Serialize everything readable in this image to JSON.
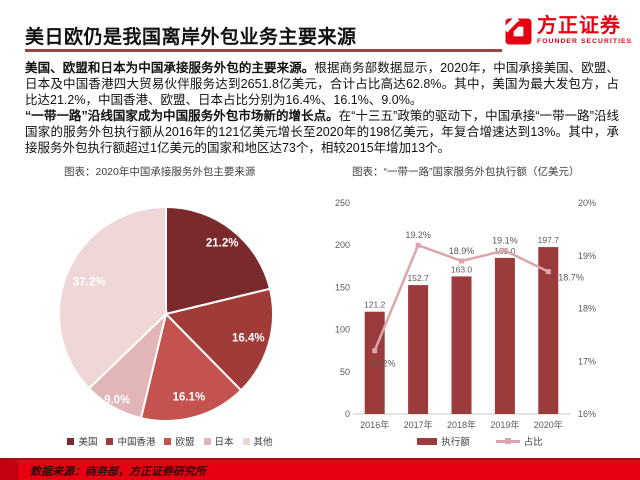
{
  "header": {
    "title": "美日欧仍是我国离岸外包业务主要来源",
    "logo_cn": "方正证券",
    "logo_en": "FOUNDER SECURITIES"
  },
  "body": {
    "para1_bold": "美国、欧盟和日本为中国承接服务外包的主要来源。",
    "para1_rest": "根据商务部数据显示，2020年，中国承接美国、欧盟、日本及中国香港四大贸易伙伴服务达到2651.8亿美元，合计占比高达62.8%。其中，美国为最大发包方，占比达21.2%，中国香港、欧盟、日本占比分别为16.4%、16.1%、9.0%。",
    "para2_bold": "“一带一路”沿线国家成为中国服务外包市场新的增长点。",
    "para2_rest": "在“十三五”政策的驱动下，中国承接“一带一路”沿线国家的服务外包执行额从2016年的121亿美元增长至2020年的198亿美元，年复合增速达到13%。其中，承接服务外包执行额超过1亿美元的国家和地区达73个，相较2015年增加13个。"
  },
  "footer": {
    "source": "数据来源：商务部，方正证券研究所"
  },
  "colors": {
    "brand_red": "#E60012",
    "title_rule": "#9E4444",
    "footer_bar": "#E60012"
  },
  "chart_data": [
    {
      "type": "pie",
      "title": "图表：2020年中国承接服务外包主要来源",
      "labels": [
        "美国",
        "中国香港",
        "欧盟",
        "日本",
        "其他"
      ],
      "values": [
        21.2,
        16.4,
        16.1,
        9.0,
        37.2
      ],
      "value_labels": [
        "21.2%",
        "16.4%",
        "16.1%",
        "9.0%",
        "37.2%"
      ],
      "colors": [
        "#7A2A2C",
        "#A03B38",
        "#C4534F",
        "#E2B5B8",
        "#EFD7D8"
      ],
      "start_angle_deg": 0,
      "direction": "clockwise",
      "legend_position": "bottom"
    },
    {
      "type": "bar+line",
      "title": "图表：“一带一路”国家服务外包执行额（亿美元）",
      "categories": [
        "2016年",
        "2017年",
        "2018年",
        "2019年",
        "2020年"
      ],
      "series": [
        {
          "name": "执行额",
          "type": "bar",
          "axis": "left",
          "values": [
            121.2,
            152.7,
            163.0,
            185.0,
            197.7
          ],
          "value_labels": [
            "121.2",
            "152.7",
            "163.0",
            "185.0",
            "197.7"
          ],
          "color": "#9C3B3B"
        },
        {
          "name": "占比",
          "type": "line",
          "axis": "right",
          "values": [
            17.2,
            19.2,
            18.9,
            19.1,
            18.7
          ],
          "value_labels": [
            "17.2%",
            "19.2%",
            "18.9%",
            "19.1%",
            "18.7%"
          ],
          "color": "#DBA6AB"
        }
      ],
      "left_axis": {
        "min": 0,
        "max": 250,
        "ticks": [
          0,
          50,
          100,
          150,
          200,
          250
        ]
      },
      "right_axis": {
        "min": 16,
        "max": 20,
        "tick_labels": [
          "16%",
          "17%",
          "18%",
          "19%",
          "20%"
        ]
      },
      "grid": false,
      "legend_position": "bottom"
    }
  ]
}
